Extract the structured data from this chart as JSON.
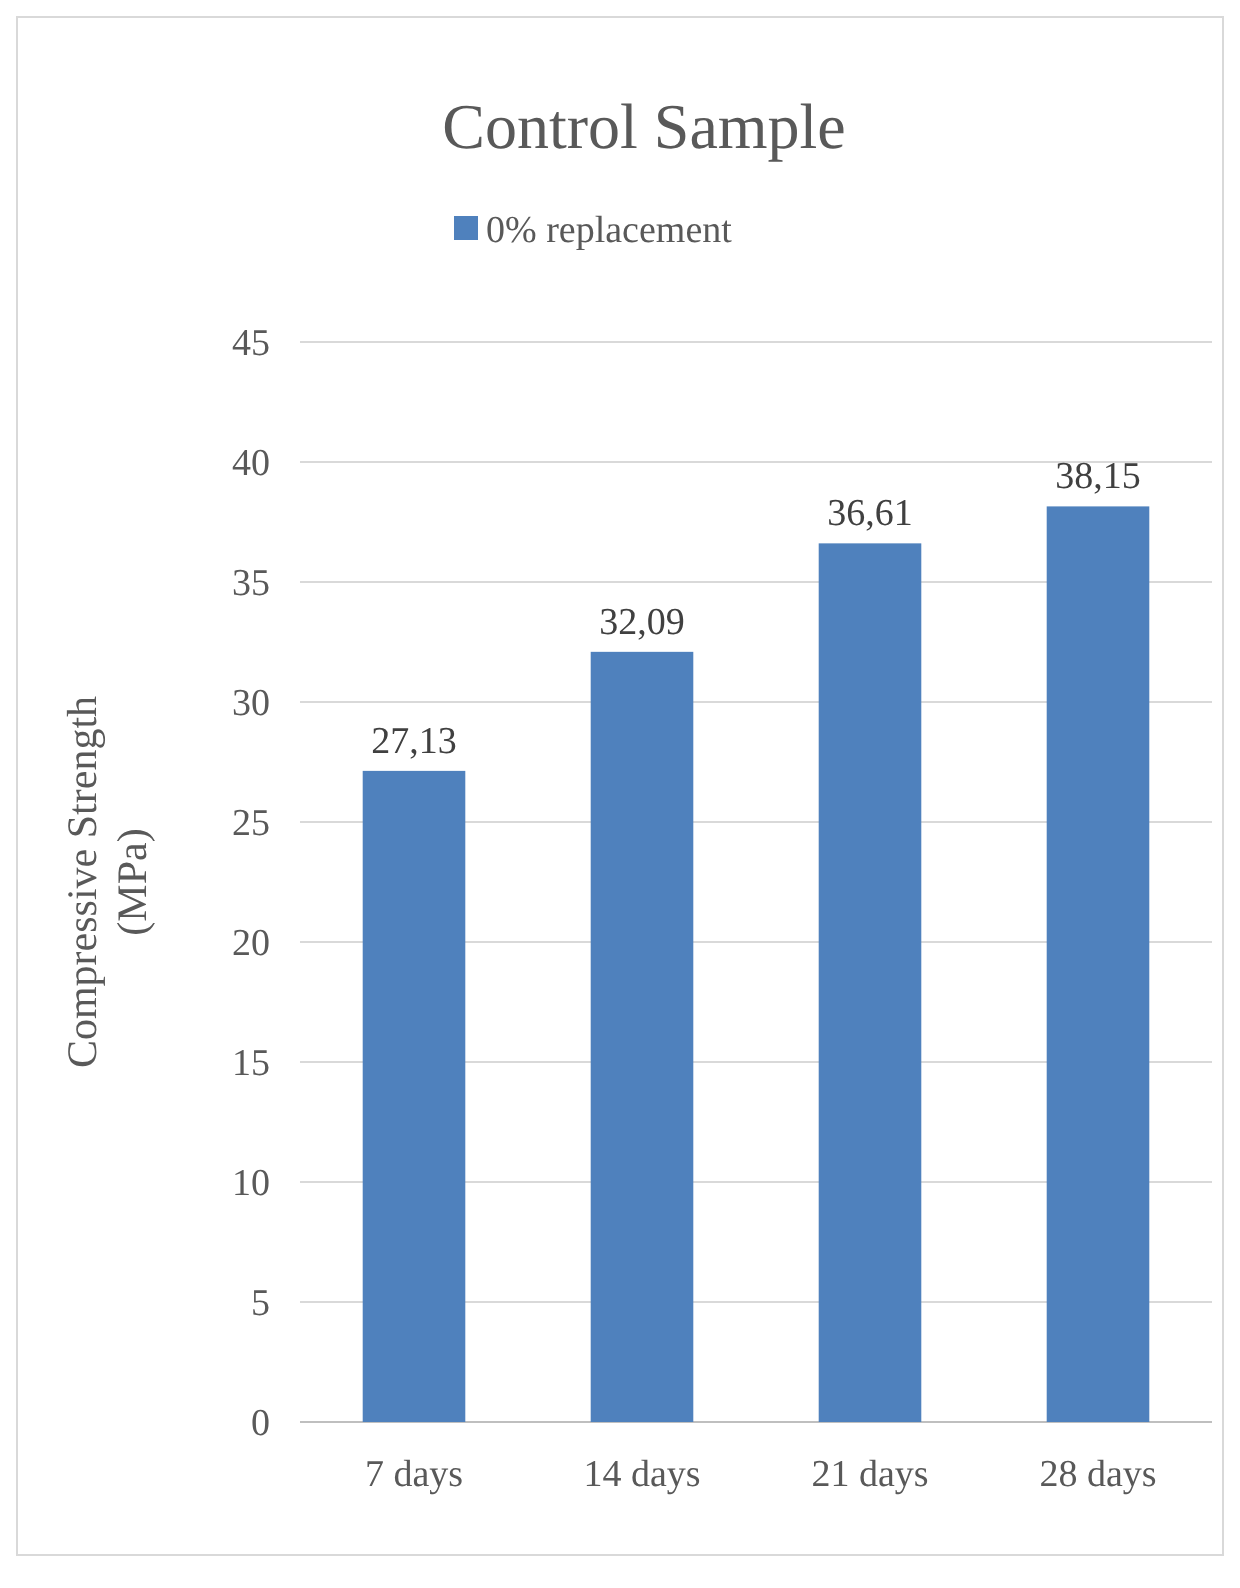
{
  "chart_data": {
    "type": "bar",
    "title": "Control Sample",
    "ylabel": "Compressive Strength (MPa)",
    "categories": [
      "7 days",
      "14 days",
      "21 days",
      "28 days"
    ],
    "series": [
      {
        "name": "0% replacement",
        "color": "#4f81bd",
        "values": [
          27.13,
          32.09,
          36.61,
          38.15
        ],
        "value_labels": [
          "27,13",
          "32,09",
          "36,61",
          "38,15"
        ]
      }
    ],
    "ylim": [
      0,
      45
    ],
    "yticks": [
      0,
      5,
      10,
      15,
      20,
      25,
      30,
      35,
      40,
      45
    ],
    "grid": "y",
    "legend": "top"
  }
}
